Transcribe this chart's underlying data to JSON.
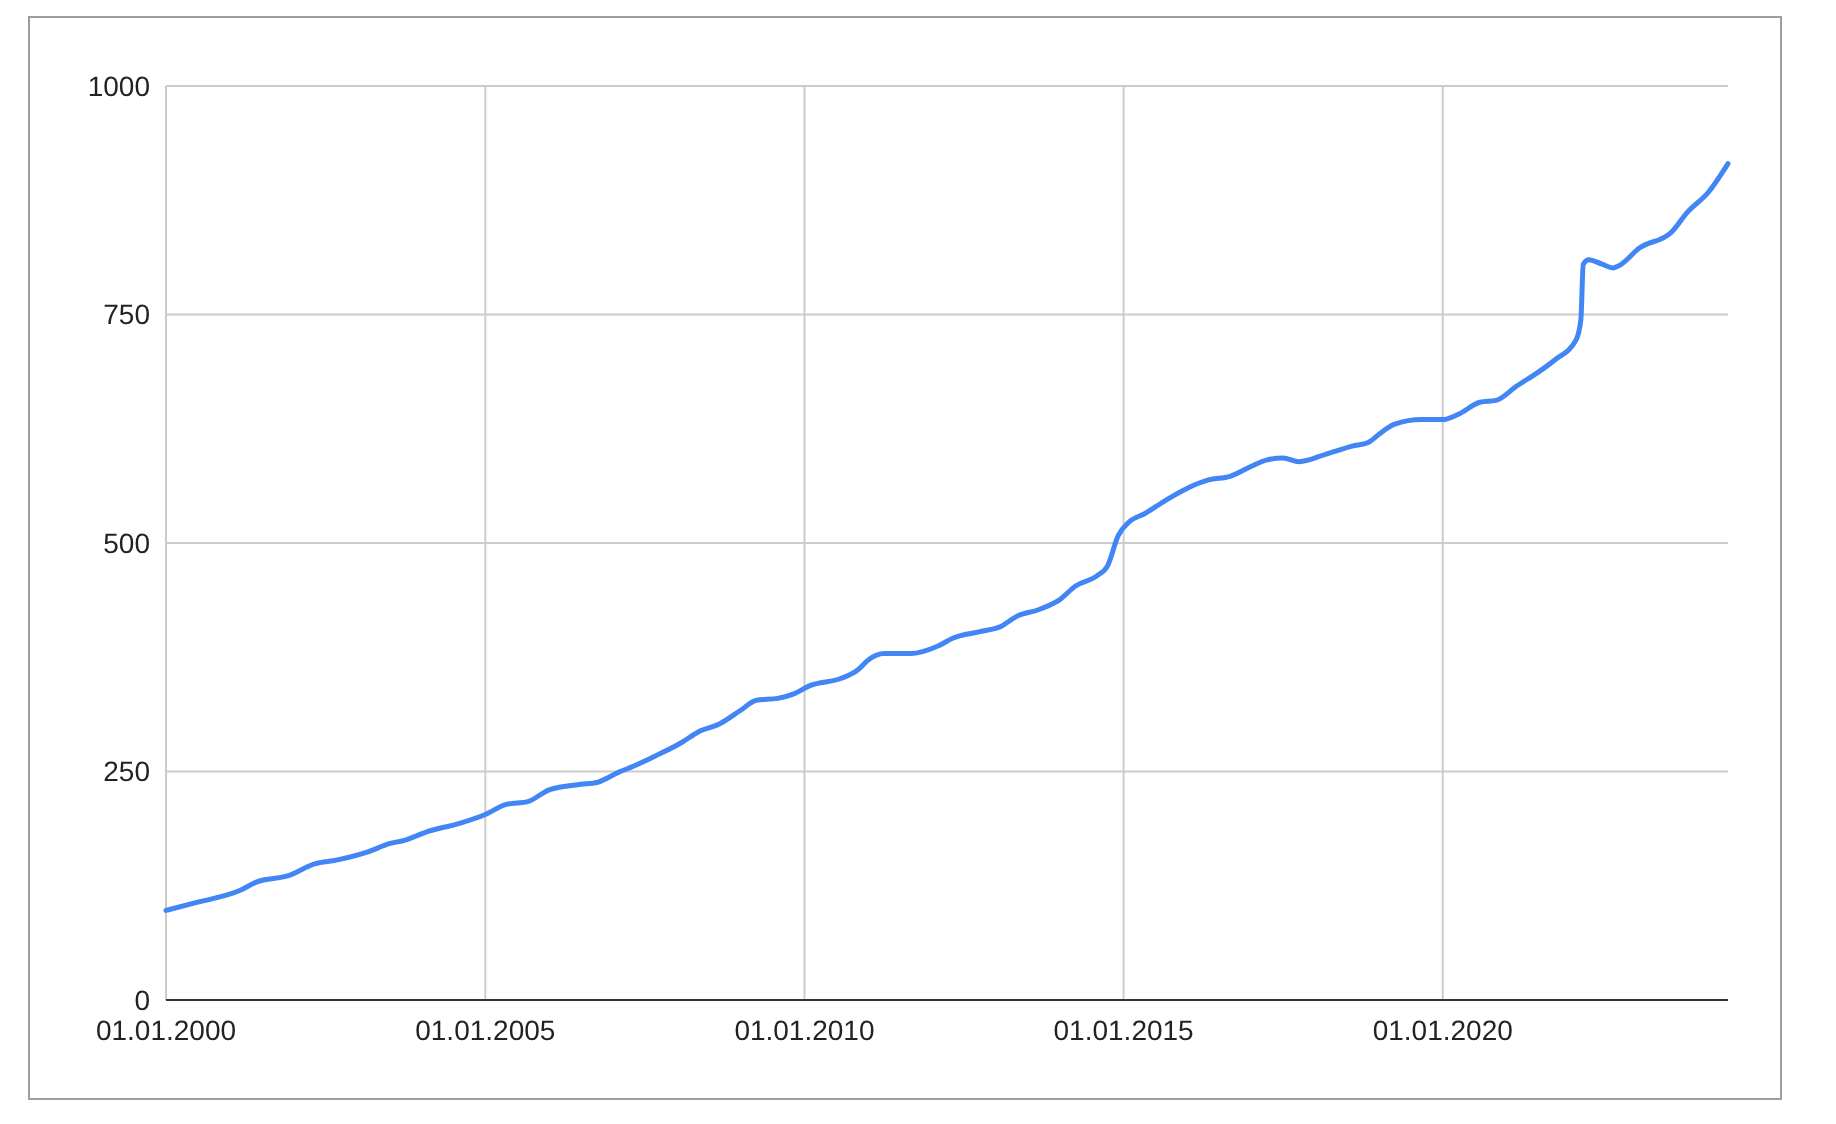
{
  "chart_data": {
    "type": "line",
    "grid": true,
    "ylim": [
      0,
      1000
    ],
    "yticks": [
      0,
      250,
      500,
      750,
      1000
    ],
    "xlim": [
      "2000-01-01",
      "2024-06-20"
    ],
    "xticks": [
      {
        "value": "2000-01-01",
        "label": "01.01.2000"
      },
      {
        "value": "2005-01-01",
        "label": "01.01.2005"
      },
      {
        "value": "2010-01-01",
        "label": "01.01.2010"
      },
      {
        "value": "2015-01-01",
        "label": "01.01.2015"
      },
      {
        "value": "2020-01-01",
        "label": "01.01.2020"
      }
    ],
    "x": [
      "2000-01",
      "2000-07",
      "2001-03",
      "2001-06",
      "2001-12",
      "2002-05",
      "2002-09",
      "2003-03",
      "2003-07",
      "2003-10",
      "2004-02",
      "2004-08",
      "2005-01",
      "2005-05",
      "2005-09",
      "2006-01",
      "2006-07",
      "2006-10",
      "2007-02",
      "2007-05",
      "2007-09",
      "2008-02",
      "2008-05",
      "2008-09",
      "2009-01",
      "2009-04",
      "2009-08",
      "2009-11",
      "2010-02",
      "2010-08",
      "2010-11",
      "2011-01",
      "2011-04",
      "2011-09",
      "2012-02",
      "2012-05",
      "2012-10",
      "2013-02",
      "2013-05",
      "2013-09",
      "2014-01",
      "2014-04",
      "2014-08",
      "2014-10",
      "2014-12",
      "2015-02",
      "2015-05",
      "2015-09",
      "2016-01",
      "2016-05",
      "2016-09",
      "2017-01",
      "2017-04",
      "2017-07",
      "2017-10",
      "2018-03",
      "2018-08",
      "2018-11",
      "2019-01",
      "2019-04",
      "2019-09",
      "2020-01",
      "2020-04",
      "2020-08",
      "2020-11",
      "2021-03",
      "2021-07",
      "2021-10",
      "2022-02-01",
      "2022-03-01",
      "2022-03-15",
      "2022-04-15",
      "2022-07",
      "2022-09",
      "2022-10",
      "2023-02",
      "2023-08",
      "2023-11",
      "2024-03",
      "2024-06-20"
    ],
    "series": [
      {
        "color": "#4285f4",
        "values": [
          98,
          107,
          120,
          129,
          136,
          149,
          153,
          162,
          171,
          175,
          184,
          193,
          203,
          214,
          217,
          230,
          236,
          238,
          249,
          256,
          267,
          282,
          293,
          302,
          317,
          328,
          330,
          335,
          344,
          352,
          361,
          372,
          379,
          379,
          387,
          396,
          403,
          409,
          420,
          427,
          438,
          453,
          464,
          475,
          508,
          523,
          532,
          547,
          560,
          569,
          573,
          584,
          591,
          593,
          589,
          597,
          606,
          610,
          619,
          630,
          635,
          635,
          641,
          654,
          656,
          672,
          687,
          700,
          722,
          744,
          805,
          810,
          805,
          801,
          803,
          823,
          840,
          862,
          884,
          915
        ]
      }
    ]
  }
}
